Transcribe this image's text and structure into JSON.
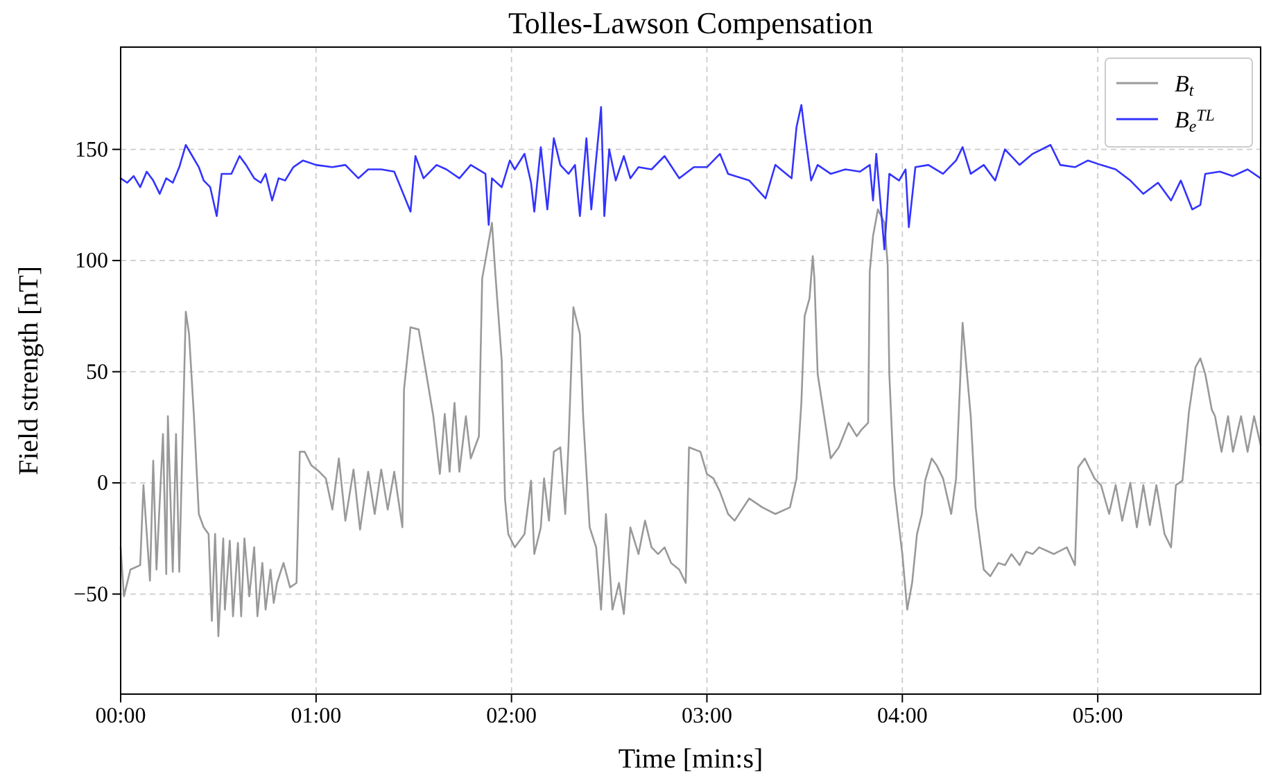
{
  "chart_data": {
    "type": "line",
    "title": "Tolles-Lawson Compensation",
    "xlabel": "Time [min:s]",
    "ylabel": "Field strength [nT]",
    "xlim": [
      0,
      350
    ],
    "xticks": [
      {
        "value": 0,
        "label": "00:00"
      },
      {
        "value": 60,
        "label": "01:00"
      },
      {
        "value": 120,
        "label": "02:00"
      },
      {
        "value": 180,
        "label": "03:00"
      },
      {
        "value": 240,
        "label": "04:00"
      },
      {
        "value": 300,
        "label": "05:00"
      }
    ],
    "ylim": [
      -95,
      196
    ],
    "yticks": [
      {
        "value": -50,
        "label": "−50"
      },
      0,
      50,
      100,
      150
    ],
    "grid": true,
    "legend": "top right",
    "line_style": "solid",
    "series": [
      {
        "name": "B$_{t}$",
        "color": "#999999",
        "x": [
          0,
          1,
          3,
          6,
          7,
          9,
          10,
          11,
          13,
          14,
          14.5,
          16,
          17,
          18,
          20,
          21,
          22.5,
          24,
          25.5,
          27,
          28,
          29,
          30,
          31.5,
          32,
          33.5,
          34.5,
          36,
          37,
          38,
          39.5,
          41,
          42,
          43.5,
          44.5,
          46,
          47,
          48,
          50,
          52,
          54,
          55,
          56.5,
          58.5,
          61,
          63,
          65,
          67,
          69,
          71.5,
          73.5,
          76,
          78,
          80,
          82,
          84,
          86.5,
          87,
          89,
          91.5,
          93.5,
          96,
          98,
          99.5,
          101,
          102.5,
          104,
          106,
          107.5,
          110,
          111,
          112,
          114,
          115,
          117,
          118,
          119,
          121,
          124,
          126,
          127,
          129,
          130,
          131.5,
          133,
          135,
          136.5,
          137.5,
          139,
          141,
          142,
          144,
          146,
          147.5,
          149,
          151,
          153,
          154.5,
          156.5,
          159,
          161,
          163,
          165,
          167,
          169,
          171.5,
          173.5,
          174.5,
          178,
          180,
          182,
          184,
          186.5,
          188.5,
          193,
          197,
          201,
          205.5,
          207.5,
          209,
          210,
          211.5,
          212.5,
          213,
          214,
          216,
          218,
          220.5,
          223.5,
          226,
          227.5,
          229.5,
          230,
          231,
          232.5,
          234.5,
          235.5,
          236,
          237.5,
          239,
          240,
          241.5,
          243,
          244.5,
          246,
          247,
          249,
          250.5,
          252.5,
          255,
          256.5,
          258.5,
          259.5,
          261,
          262.5,
          265,
          267,
          269.5,
          271.5,
          273.5,
          276,
          278,
          280,
          282,
          286.5,
          290.5,
          293,
          294,
          296,
          299,
          301,
          303.5,
          305.5,
          307.5,
          310,
          312,
          314,
          316,
          318,
          320.5,
          322.5,
          324,
          326,
          328,
          330,
          331.5,
          333,
          335,
          336,
          338,
          340,
          341.5,
          344,
          346,
          348,
          350
        ],
        "values": [
          -29,
          -51,
          -39,
          -37,
          -1,
          -44,
          10,
          -39,
          22,
          -41,
          30,
          -40,
          22,
          -40,
          77,
          67,
          30,
          -14,
          -20,
          -23,
          -62,
          -23,
          -69,
          -25,
          -57,
          -26,
          -60,
          -27,
          -60,
          -25,
          -51,
          -29,
          -60,
          -36,
          -57,
          -39,
          -54,
          -45,
          -36,
          -47,
          -45,
          14,
          14,
          8,
          5,
          2,
          -12,
          11,
          -17,
          6,
          -21,
          5,
          -14,
          6,
          -12,
          5,
          -20,
          42,
          70,
          69,
          52,
          30,
          4,
          31,
          5,
          36,
          5,
          30,
          11,
          21,
          92,
          100,
          117,
          95,
          55,
          -7,
          -23,
          -29,
          -23,
          1,
          -32,
          -20,
          2,
          -17,
          14,
          16,
          -14,
          17,
          79,
          67,
          30,
          -20,
          -29,
          -57,
          -14,
          -57,
          -45,
          -59,
          -20,
          -32,
          -17,
          -29,
          -32,
          -29,
          -36,
          -39,
          -45,
          16,
          14,
          4,
          2,
          -4,
          -14,
          -17,
          -7,
          -11,
          -14,
          -11,
          2,
          36,
          75,
          83,
          102,
          92,
          49,
          30,
          11,
          16,
          27,
          21,
          24,
          27,
          95,
          111,
          123,
          117,
          98,
          49,
          -1,
          -20,
          -32,
          -57,
          -45,
          -23,
          -14,
          1,
          11,
          8,
          2,
          -14,
          2,
          72,
          55,
          30,
          -11,
          -39,
          -42,
          -36,
          -37,
          -32,
          -37,
          -31,
          -32,
          -29,
          -32,
          -29,
          -37,
          7,
          11,
          2,
          -1,
          -14,
          -1,
          -17,
          0,
          -20,
          -1,
          -19,
          -1,
          -23,
          -29,
          -1,
          1,
          32,
          52,
          56,
          49,
          33,
          30,
          14,
          30,
          14,
          30,
          14,
          30,
          17
        ]
      },
      {
        "name": "B$_{e}$$^{TL}$",
        "color": "#3333ff",
        "x": [
          0,
          2,
          4,
          6,
          8,
          10,
          12,
          14,
          16,
          18,
          20,
          22,
          24,
          25.5,
          27.5,
          29.5,
          31,
          34,
          36.5,
          38.5,
          41,
          43,
          44.5,
          46.5,
          48.5,
          50.5,
          53,
          56,
          60,
          65,
          69,
          73,
          76,
          80,
          84,
          89,
          90.5,
          93,
          97,
          100,
          104,
          107.5,
          112,
          113,
          114,
          117,
          119.5,
          121,
          124,
          126,
          127,
          129,
          131,
          133,
          135,
          137.5,
          139.5,
          141,
          143,
          144.5,
          147,
          147.5,
          148.5,
          150,
          152,
          154.5,
          156.5,
          159,
          163,
          167,
          171.5,
          176,
          180,
          184,
          186.5,
          193,
          198,
          201,
          206,
          207.5,
          209,
          210,
          212,
          214,
          218,
          222.5,
          227,
          230,
          231,
          232,
          234.5,
          236,
          239,
          241,
          242,
          244,
          248,
          252.5,
          256.5,
          258.5,
          261,
          265,
          268.5,
          271.5,
          276,
          280,
          285.5,
          288.5,
          293,
          297,
          301,
          305.5,
          310,
          314,
          318.5,
          322.5,
          325.5,
          329,
          331.5,
          333,
          337.5,
          341.5,
          346,
          350
        ],
        "values": [
          137,
          135,
          138,
          133,
          140,
          136,
          130,
          137,
          135,
          142,
          152,
          147,
          142,
          136,
          133,
          120,
          139,
          139,
          147,
          143,
          137,
          135,
          139,
          127,
          137,
          136,
          142,
          145,
          143,
          142,
          143,
          137,
          141,
          141,
          140,
          122,
          147,
          137,
          143,
          141,
          137,
          143,
          139,
          116,
          137,
          133,
          145,
          141,
          148,
          135,
          122,
          151,
          123,
          155,
          143,
          139,
          143,
          120,
          155,
          123,
          161,
          169,
          120,
          150,
          136,
          147,
          137,
          142,
          141,
          147,
          137,
          142,
          142,
          148,
          139,
          136,
          128,
          143,
          137,
          160,
          170,
          158,
          136,
          143,
          139,
          141,
          140,
          143,
          127,
          148,
          105,
          139,
          136,
          141,
          115,
          142,
          143,
          139,
          145,
          151,
          139,
          143,
          136,
          150,
          143,
          148,
          152,
          143,
          142,
          145,
          143,
          141,
          136,
          130,
          135,
          127,
          136,
          123,
          125,
          139,
          140,
          138,
          141,
          137
        ]
      }
    ]
  }
}
